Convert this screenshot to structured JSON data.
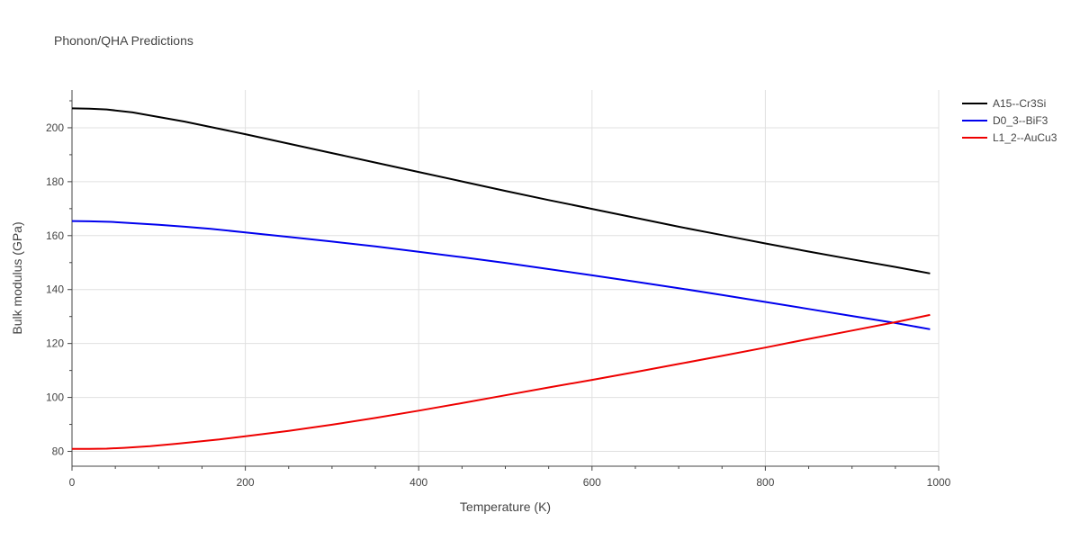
{
  "chart_data": {
    "type": "line",
    "title": "Phonon/QHA Predictions",
    "xlabel": "Temperature (K)",
    "ylabel": "Bulk modulus (GPa)",
    "xlim": [
      0,
      1000
    ],
    "ylim": [
      74.5,
      214
    ],
    "xticks": [
      0,
      200,
      400,
      600,
      800,
      1000
    ],
    "yticks": [
      80,
      100,
      120,
      140,
      160,
      180,
      200
    ],
    "grid": true,
    "legend_position": "top-right",
    "series": [
      {
        "name": "A15--Cr3Si",
        "color": "#000000",
        "x": [
          0,
          20,
          40,
          70,
          100,
          130,
          160,
          200,
          250,
          300,
          350,
          400,
          450,
          500,
          550,
          600,
          650,
          700,
          750,
          800,
          850,
          900,
          950,
          990
        ],
        "y": [
          207.2,
          207.1,
          206.8,
          205.7,
          204.0,
          202.3,
          200.3,
          197.6,
          194.1,
          190.6,
          187.1,
          183.6,
          180.1,
          176.6,
          173.2,
          169.9,
          166.6,
          163.3,
          160.2,
          157.1,
          154.1,
          151.2,
          148.4,
          146.0
        ]
      },
      {
        "name": "D0_3--BiF3",
        "color": "#0000ee",
        "x": [
          0,
          20,
          45,
          70,
          100,
          130,
          160,
          200,
          250,
          300,
          350,
          400,
          450,
          500,
          550,
          600,
          650,
          700,
          750,
          800,
          850,
          900,
          950,
          990
        ],
        "y": [
          165.4,
          165.3,
          165.1,
          164.6,
          164.0,
          163.3,
          162.5,
          161.2,
          159.5,
          157.8,
          156.0,
          154.0,
          152.0,
          149.9,
          147.6,
          145.3,
          142.9,
          140.5,
          138.0,
          135.4,
          132.8,
          130.2,
          127.6,
          125.3
        ]
      },
      {
        "name": "L1_2--AuCu3",
        "color": "#ee0000",
        "x": [
          0,
          20,
          40,
          60,
          90,
          120,
          170,
          200,
          250,
          300,
          350,
          400,
          450,
          500,
          550,
          600,
          650,
          700,
          750,
          800,
          850,
          900,
          950,
          990
        ],
        "y": [
          80.9,
          80.9,
          81.0,
          81.3,
          81.9,
          82.8,
          84.4,
          85.6,
          87.6,
          89.9,
          92.4,
          95.1,
          97.9,
          100.8,
          103.7,
          106.5,
          109.4,
          112.4,
          115.4,
          118.5,
          121.7,
          124.8,
          127.9,
          130.6
        ]
      }
    ]
  }
}
